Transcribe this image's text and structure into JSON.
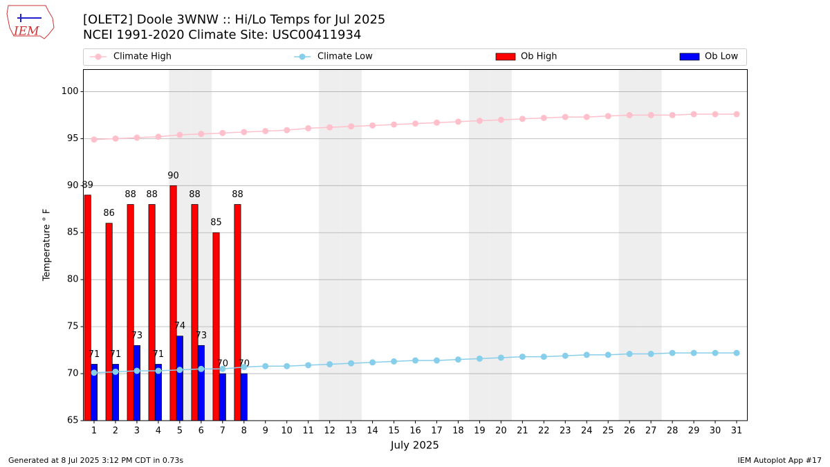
{
  "chart_data": {
    "type": "bar",
    "title": "[OLET2] Doole 3WNW :: Hi/Lo Temps for Jul 2025",
    "subtitle": "NCEI 1991-2020 Climate Site: USC00411934",
    "logo_text": "IEM",
    "x_label": "July 2025",
    "y_label": "Temperature ° F",
    "footer_left": "Generated at 8 Jul 2025 3:12 PM CDT in 0.73s",
    "footer_right": "IEM Autoplot App #17",
    "x": [
      1,
      2,
      3,
      4,
      5,
      6,
      7,
      8,
      9,
      10,
      11,
      12,
      13,
      14,
      15,
      16,
      17,
      18,
      19,
      20,
      21,
      22,
      23,
      24,
      25,
      26,
      27,
      28,
      29,
      30,
      31
    ],
    "xlim": [
      0.5,
      31.5
    ],
    "xticks": [
      1,
      2,
      3,
      4,
      5,
      6,
      7,
      8,
      9,
      10,
      11,
      12,
      13,
      14,
      15,
      16,
      17,
      18,
      19,
      20,
      21,
      22,
      23,
      24,
      25,
      26,
      27,
      28,
      29,
      30,
      31
    ],
    "ylim": [
      65,
      102.35
    ],
    "yticks": [
      65,
      70,
      75,
      80,
      85,
      90,
      95,
      100
    ],
    "grid": true,
    "shaded_days": [
      5,
      6,
      12,
      13,
      19,
      20,
      26,
      27
    ],
    "series": [
      {
        "name": "Climate High",
        "type": "line",
        "color": "#ffc0cb",
        "values": [
          94.9,
          95.0,
          95.1,
          95.2,
          95.4,
          95.5,
          95.6,
          95.7,
          95.8,
          95.9,
          96.1,
          96.2,
          96.3,
          96.4,
          96.5,
          96.6,
          96.7,
          96.8,
          96.9,
          97.0,
          97.1,
          97.2,
          97.3,
          97.3,
          97.4,
          97.5,
          97.5,
          97.5,
          97.6,
          97.6,
          97.6
        ]
      },
      {
        "name": "Climate Low",
        "type": "line",
        "color": "#87ceeb",
        "values": [
          70.1,
          70.2,
          70.3,
          70.3,
          70.4,
          70.5,
          70.5,
          70.7,
          70.8,
          70.8,
          70.9,
          71.0,
          71.1,
          71.2,
          71.3,
          71.4,
          71.4,
          71.5,
          71.6,
          71.7,
          71.8,
          71.8,
          71.9,
          72.0,
          72.0,
          72.1,
          72.1,
          72.2,
          72.2,
          72.2,
          72.2
        ]
      },
      {
        "name": "Ob High",
        "type": "bar",
        "color": "#ff0000",
        "values": [
          89,
          86,
          88,
          88,
          90,
          88,
          85,
          88,
          null,
          null,
          null,
          null,
          null,
          null,
          null,
          null,
          null,
          null,
          null,
          null,
          null,
          null,
          null,
          null,
          null,
          null,
          null,
          null,
          null,
          null,
          null
        ]
      },
      {
        "name": "Ob Low",
        "type": "bar",
        "color": "#0000ff",
        "values": [
          71,
          71,
          73,
          71,
          74,
          73,
          70,
          70,
          null,
          null,
          null,
          null,
          null,
          null,
          null,
          null,
          null,
          null,
          null,
          null,
          null,
          null,
          null,
          null,
          null,
          null,
          null,
          null,
          null,
          null,
          null
        ]
      }
    ]
  }
}
